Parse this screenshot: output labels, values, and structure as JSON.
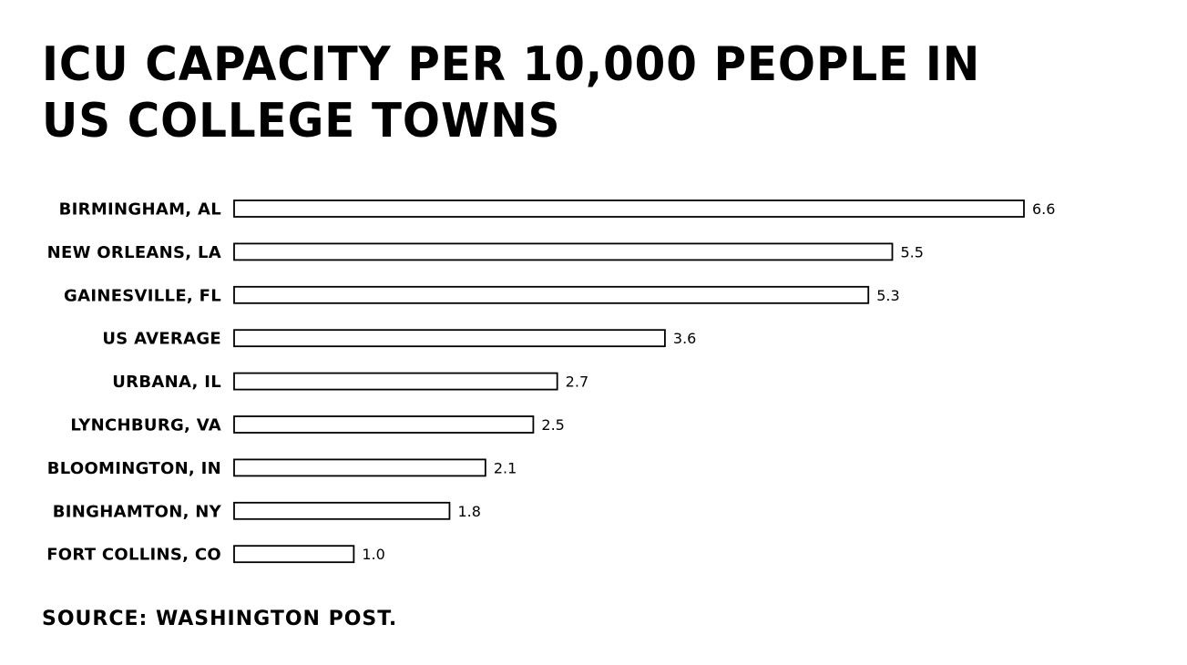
{
  "chart_data": {
    "type": "bar",
    "orientation": "horizontal",
    "title": "ICU CAPACITY PER 10,000 PEOPLE IN US COLLEGE TOWNS",
    "categories": [
      "BIRMINGHAM, AL",
      "NEW ORLEANS, LA",
      "GAINESVILLE, FL",
      "US AVERAGE",
      "URBANA, IL",
      "LYNCHBURG, VA",
      "BLOOMINGTON, IN",
      "BINGHAMTON, NY",
      "FORT COLLINS, CO"
    ],
    "values": [
      6.6,
      5.5,
      5.3,
      3.6,
      2.7,
      2.5,
      2.1,
      1.8,
      1.0
    ],
    "value_labels": [
      "6.6",
      "5.5",
      "5.3",
      "3.6",
      "2.7",
      "2.5",
      "2.1",
      "1.8",
      "1.0"
    ],
    "xlabel": "",
    "ylabel": "",
    "xlim": [
      0,
      6.6
    ],
    "grid": false,
    "legend": "none",
    "bar_fill": "#ffffff",
    "bar_stroke": "#000000"
  },
  "source": "SOURCE: WASHINGTON POST."
}
